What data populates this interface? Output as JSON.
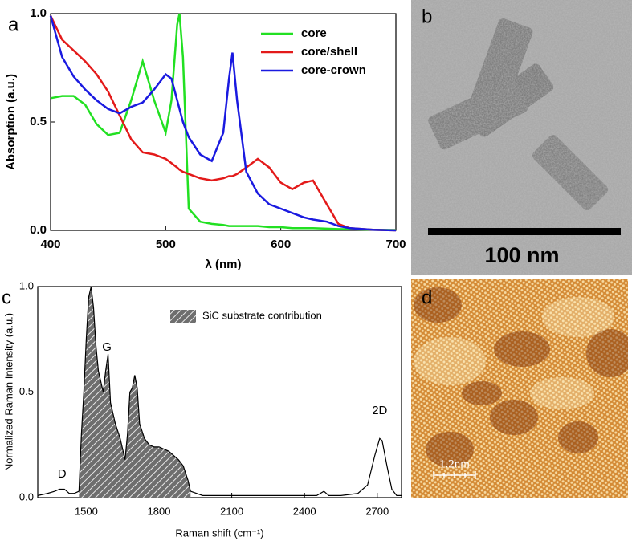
{
  "chart_data": [
    {
      "type": "line",
      "panel_label": "a",
      "xlabel": "λ (nm)",
      "ylabel": "Absorption (a.u.)",
      "xlim": [
        400,
        700
      ],
      "xticks": [
        400,
        500,
        600,
        700
      ],
      "ylim": [
        0,
        1
      ],
      "yticks": [
        {
          "value": 0,
          "label": "0.0"
        },
        {
          "value": 0.5,
          "label": "0.5"
        },
        {
          "value": 1,
          "label": "1.0"
        }
      ],
      "legend": "upper right",
      "x": [
        400,
        410,
        420,
        430,
        440,
        450,
        460,
        470,
        480,
        490,
        500,
        505,
        510,
        512,
        515,
        520,
        530,
        540,
        550,
        555,
        558,
        562,
        570,
        580,
        590,
        600,
        610,
        620,
        628,
        640,
        650,
        660,
        680,
        700
      ],
      "series": [
        {
          "name": "core",
          "color": "#22e022",
          "values": [
            0.61,
            0.62,
            0.62,
            0.58,
            0.49,
            0.44,
            0.45,
            0.6,
            0.78,
            0.6,
            0.45,
            0.6,
            0.95,
            1.0,
            0.8,
            0.1,
            0.04,
            0.03,
            0.025,
            0.02,
            0.02,
            0.02,
            0.02,
            0.02,
            0.015,
            0.015,
            0.01,
            0.01,
            0.01,
            0.008,
            0.006,
            0.005,
            0.003,
            0.002
          ]
        },
        {
          "name": "core/shell",
          "color": "#e31a1a",
          "values": [
            0.99,
            0.88,
            0.83,
            0.78,
            0.72,
            0.64,
            0.53,
            0.42,
            0.36,
            0.35,
            0.33,
            0.31,
            0.29,
            0.28,
            0.27,
            0.26,
            0.24,
            0.23,
            0.24,
            0.25,
            0.25,
            0.26,
            0.29,
            0.33,
            0.29,
            0.22,
            0.19,
            0.22,
            0.23,
            0.12,
            0.03,
            0.01,
            0.003,
            0.0
          ]
        },
        {
          "name": "core-crown",
          "color": "#1a1ae0",
          "values": [
            0.99,
            0.8,
            0.71,
            0.65,
            0.6,
            0.56,
            0.54,
            0.57,
            0.59,
            0.65,
            0.72,
            0.7,
            0.6,
            0.56,
            0.5,
            0.43,
            0.35,
            0.32,
            0.45,
            0.7,
            0.82,
            0.6,
            0.27,
            0.17,
            0.12,
            0.1,
            0.08,
            0.06,
            0.05,
            0.04,
            0.02,
            0.01,
            0.003,
            0.0
          ]
        }
      ]
    },
    {
      "type": "line",
      "panel_label": "c",
      "xlabel": "Raman shift (cm⁻¹)",
      "ylabel": "Normalized Raman Intensity (a.u.)",
      "xlim": [
        1300,
        2800
      ],
      "xticks": [
        1500,
        1800,
        2100,
        2400,
        2700
      ],
      "ylim": [
        0,
        1
      ],
      "yticks": [
        {
          "value": 0,
          "label": "0.0"
        },
        {
          "value": 0.5,
          "label": "0.5"
        },
        {
          "value": 1,
          "label": "1.0"
        }
      ],
      "legend": "upper right",
      "annotations": [
        "D",
        "G",
        "2D"
      ],
      "series": [
        {
          "color": "#000000",
          "x": [
            1300,
            1340,
            1370,
            1390,
            1410,
            1430,
            1450,
            1470
          ],
          "values": [
            0.01,
            0.02,
            0.03,
            0.04,
            0.04,
            0.02,
            0.02,
            0.03
          ]
        },
        {
          "name": "SiC substrate contribution",
          "color": "#000000",
          "fill": "hatched",
          "x": [
            1470,
            1480,
            1490,
            1500,
            1510,
            1520,
            1530,
            1540,
            1550,
            1560,
            1570,
            1580,
            1590,
            1600,
            1620,
            1640,
            1660,
            1670,
            1680,
            1690,
            1700,
            1710,
            1720,
            1740,
            1760,
            1780,
            1800,
            1820,
            1840,
            1860,
            1880,
            1900,
            1920,
            1930
          ],
          "values": [
            0.03,
            0.3,
            0.5,
            0.75,
            0.95,
            1.0,
            0.9,
            0.72,
            0.6,
            0.55,
            0.5,
            0.6,
            0.68,
            0.45,
            0.35,
            0.28,
            0.18,
            0.3,
            0.5,
            0.52,
            0.58,
            0.52,
            0.35,
            0.28,
            0.25,
            0.24,
            0.24,
            0.23,
            0.22,
            0.2,
            0.18,
            0.15,
            0.08,
            0.03
          ]
        },
        {
          "color": "#000000",
          "x": [
            1930,
            1980,
            2050,
            2150,
            2250,
            2350,
            2450,
            2480,
            2500,
            2550,
            2620,
            2660,
            2690,
            2710,
            2720,
            2740,
            2760,
            2780,
            2800
          ],
          "values": [
            0.03,
            0.01,
            0.01,
            0.01,
            0.01,
            0.01,
            0.01,
            0.03,
            0.01,
            0.01,
            0.02,
            0.06,
            0.2,
            0.28,
            0.27,
            0.15,
            0.04,
            0.01,
            0.01
          ]
        }
      ]
    }
  ],
  "images": [
    {
      "label": "b",
      "scale_bar": "100 nm"
    },
    {
      "label": "d",
      "scale_bar": "1.2nm"
    }
  ]
}
